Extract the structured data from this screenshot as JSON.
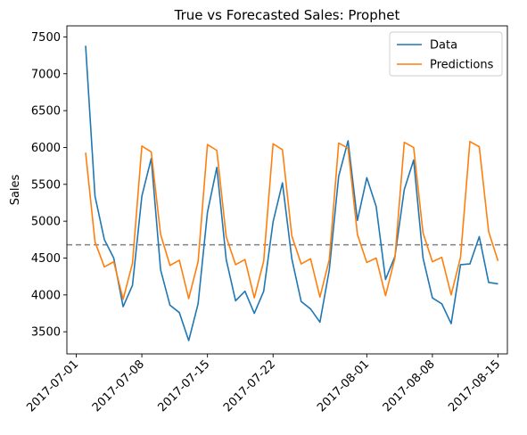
{
  "chart_data": {
    "type": "line",
    "title": "True vs Forecasted Sales: Prophet",
    "xlabel": "",
    "ylabel": "Sales",
    "x_start": "2017-07-02",
    "xlim": [
      "2017-06-30",
      "2017-08-16"
    ],
    "ylim": [
      3200,
      7650
    ],
    "y_ticks": [
      3500,
      4000,
      4500,
      5000,
      5500,
      6000,
      6500,
      7000,
      7500
    ],
    "x_ticks": [
      "2017-07-01",
      "2017-07-08",
      "2017-07-15",
      "2017-07-22",
      "2017-08-01",
      "2017-08-08",
      "2017-08-15"
    ],
    "x_tick_rotation": 45,
    "grid": false,
    "legend_position": "top-right",
    "mean_line": {
      "value": 4680,
      "color": "#808080",
      "style": "dashed"
    },
    "series": [
      {
        "name": "Data",
        "color": "#1f77b4",
        "values": [
          7380,
          5340,
          4750,
          4500,
          3840,
          4130,
          5340,
          5850,
          4340,
          3860,
          3760,
          3380,
          3880,
          5120,
          5730,
          4480,
          3920,
          4050,
          3750,
          4050,
          4990,
          5520,
          4490,
          3910,
          3810,
          3630,
          4340,
          5610,
          6090,
          5010,
          5590,
          5200,
          4210,
          4520,
          5430,
          5830,
          4500,
          3960,
          3880,
          3610,
          4410,
          4420,
          4790,
          4170,
          4150
        ]
      },
      {
        "name": "Predictions",
        "color": "#ff7f0e",
        "values": [
          5930,
          4720,
          4380,
          4450,
          3940,
          4430,
          6020,
          5940,
          4820,
          4400,
          4470,
          3950,
          4450,
          6040,
          5960,
          4790,
          4410,
          4480,
          3960,
          4460,
          6050,
          5970,
          4800,
          4420,
          4490,
          3970,
          4480,
          6060,
          5990,
          4820,
          4440,
          4500,
          3990,
          4500,
          6070,
          6000,
          4840,
          4450,
          4510,
          4000,
          4510,
          6080,
          6010,
          4860,
          4460
        ]
      }
    ]
  }
}
